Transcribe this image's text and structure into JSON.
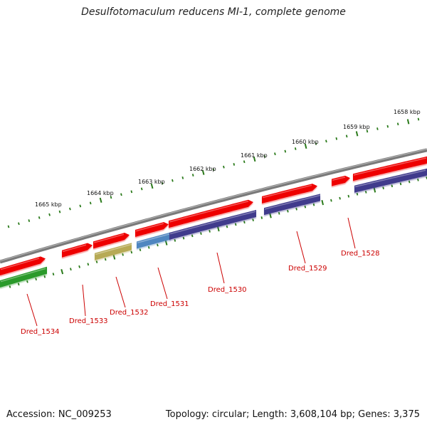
{
  "title": "Desulfotomaculum reducens MI-1, complete genome",
  "accession_text": "Accession: NC_009253",
  "summary_text": "Topology: circular; Length: 3,608,104 bp; Genes: 3,375",
  "colors": {
    "backbone": "#888888",
    "tick_mark": "#2a7a1a",
    "gene_forward": "#ee0000",
    "cds_purple": "#3f3a8c",
    "cds_green": "#2a9a2a",
    "cds_olive": "#b7aa55",
    "cds_blue": "#4f86c0",
    "label": "#cc0000"
  },
  "kbp_labels": [
    "1658 kbp",
    "1659 kbp",
    "1660 kbp",
    "1661 kbp",
    "1662 kbp",
    "1663 kbp",
    "1664 kbp",
    "1665 kbp"
  ],
  "genes": [
    "Dred_1528",
    "Dred_1529",
    "Dred_1530",
    "Dred_1531",
    "Dred_1532",
    "Dred_1533",
    "Dred_1534"
  ]
}
